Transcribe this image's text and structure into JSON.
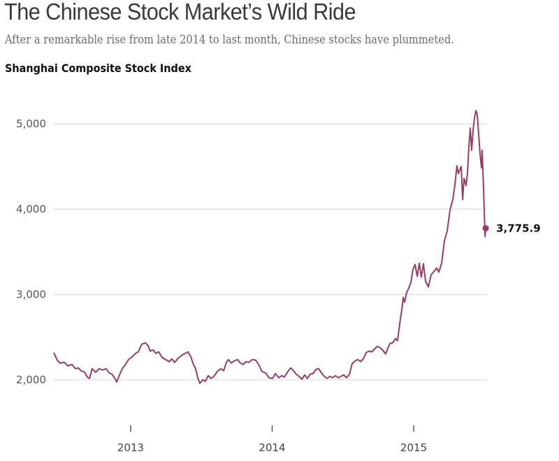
{
  "header": {
    "title": "The Chinese Stock Market’s Wild Ride",
    "subtitle": "After a remarkable rise from late 2014 to last month, Chinese stocks have plummeted."
  },
  "chart_data": {
    "type": "line",
    "title": "Shanghai Composite Stock Index",
    "xlabel": "",
    "ylabel": "",
    "x_unit": "decimal year",
    "xlim": [
      2012.457,
      2015.509
    ],
    "ylim": [
      2000,
      5000
    ],
    "grid": true,
    "y_ticks": [
      2000,
      3000,
      4000,
      5000
    ],
    "y_tick_labels": [
      "2,000",
      "3,000",
      "4,000",
      "5,000"
    ],
    "x_ticks": [
      2013,
      2014,
      2015
    ],
    "x_tick_labels": [
      "2013",
      "2014",
      "2015"
    ],
    "line_color": "#9b3b63",
    "end_annotation": {
      "value": 3775.9,
      "label": "3,775.9"
    },
    "series": [
      {
        "name": "Shanghai Composite",
        "x": [
          2012.457,
          2012.481,
          2012.501,
          2012.531,
          2012.556,
          2012.585,
          2012.61,
          2012.63,
          2012.649,
          2012.674,
          2012.694,
          2012.709,
          2012.728,
          2012.753,
          2012.778,
          2012.802,
          2012.827,
          2012.847,
          2012.867,
          2012.886,
          2012.901,
          2012.921,
          2012.941,
          2012.96,
          2012.985,
          2013.01,
          2013.035,
          2013.054,
          2013.079,
          2013.104,
          2013.123,
          2013.138,
          2013.158,
          2013.178,
          2013.198,
          2013.222,
          2013.247,
          2013.272,
          2013.291,
          2013.311,
          2013.336,
          2013.36,
          2013.385,
          2013.405,
          2013.425,
          2013.444,
          2013.459,
          2013.474,
          2013.489,
          2013.509,
          2013.528,
          2013.548,
          2013.568,
          2013.588,
          2013.612,
          2013.637,
          2013.657,
          2013.677,
          2013.691,
          2013.711,
          2013.731,
          2013.756,
          2013.775,
          2013.795,
          2013.815,
          2013.835,
          2013.859,
          2013.884,
          2013.904,
          2013.928,
          2013.953,
          2013.978,
          2014.002,
          2014.022,
          2014.047,
          2014.067,
          2014.086,
          2014.111,
          2014.131,
          2014.151,
          2014.17,
          2014.19,
          2014.21,
          2014.23,
          2014.249,
          2014.269,
          2014.289,
          2014.309,
          2014.328,
          2014.348,
          2014.368,
          2014.388,
          2014.407,
          2014.427,
          2014.447,
          2014.467,
          2014.486,
          2014.506,
          2014.526,
          2014.546,
          2014.565,
          2014.585,
          2014.605,
          2014.625,
          2014.644,
          2014.664,
          2014.684,
          2014.704,
          2014.723,
          2014.743,
          2014.763,
          2014.783,
          2014.802,
          2014.817,
          2014.832,
          2014.852,
          2014.872,
          2014.886,
          2014.901,
          2014.916,
          2014.926,
          2014.936,
          2014.951,
          2014.965,
          2014.98,
          2014.995,
          2015.01,
          2015.025,
          2015.04,
          2015.054,
          2015.069,
          2015.084,
          2015.104,
          2015.123,
          2015.143,
          2015.163,
          2015.178,
          2015.198,
          2015.217,
          2015.237,
          2015.257,
          2015.277,
          2015.291,
          2015.306,
          2015.316,
          2015.326,
          2015.336,
          2015.346,
          2015.356,
          2015.37,
          2015.38,
          2015.39,
          2015.4,
          2015.41,
          2015.42,
          2015.43,
          2015.44,
          2015.449,
          2015.459,
          2015.469,
          2015.479,
          2015.484,
          2015.494,
          2015.499,
          2015.504,
          2015.509
        ],
        "values": [
          2320,
          2230,
          2197,
          2205,
          2164,
          2180,
          2131,
          2139,
          2107,
          2090,
          2033,
          2016,
          2131,
          2090,
          2131,
          2115,
          2131,
          2082,
          2066,
          2025,
          1975,
          2057,
          2131,
          2172,
          2238,
          2270,
          2311,
          2328,
          2418,
          2434,
          2402,
          2336,
          2352,
          2311,
          2328,
          2262,
          2238,
          2213,
          2246,
          2205,
          2254,
          2287,
          2311,
          2328,
          2270,
          2180,
          2131,
          2025,
          1959,
          2000,
          1984,
          2049,
          2016,
          2041,
          2098,
          2131,
          2107,
          2205,
          2238,
          2197,
          2221,
          2238,
          2197,
          2180,
          2213,
          2205,
          2238,
          2230,
          2180,
          2098,
          2082,
          2025,
          2016,
          2074,
          2025,
          2049,
          2033,
          2098,
          2139,
          2107,
          2066,
          2041,
          2008,
          2057,
          2016,
          2066,
          2074,
          2123,
          2131,
          2082,
          2041,
          2016,
          2041,
          2025,
          2049,
          2025,
          2041,
          2057,
          2025,
          2066,
          2189,
          2221,
          2238,
          2213,
          2246,
          2320,
          2336,
          2328,
          2361,
          2393,
          2377,
          2344,
          2303,
          2369,
          2426,
          2434,
          2484,
          2459,
          2656,
          2820,
          2967,
          2910,
          3025,
          3074,
          3139,
          3295,
          3352,
          3213,
          3369,
          3205,
          3361,
          3156,
          3090,
          3230,
          3270,
          3311,
          3262,
          3369,
          3623,
          3746,
          3992,
          4115,
          4279,
          4508,
          4418,
          4459,
          4500,
          4115,
          4361,
          4279,
          4418,
          4730,
          4951,
          4689,
          4934,
          5074,
          5156,
          5115,
          4893,
          4648,
          4484,
          4689,
          4238,
          3992,
          3680,
          3776
        ]
      }
    ]
  }
}
